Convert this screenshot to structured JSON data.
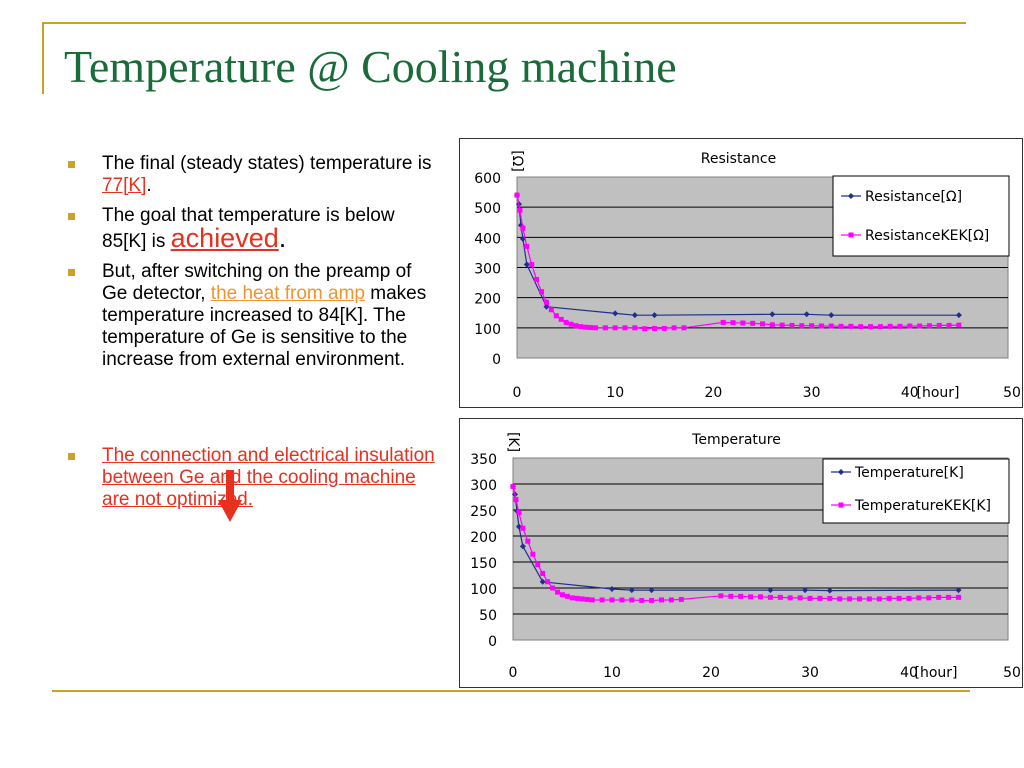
{
  "title": "Temperature @ Cooling machine",
  "bullets": {
    "b1_pre": "The final (steady states) temperature is ",
    "b1_hl": "77[K]",
    "b1_post": ".",
    "b2_pre": "The goal that temperature is below 85[K] is ",
    "b2_hl": "achieved",
    "b2_post": ".",
    "b3_pre": "But, after switching on the preamp of Ge detector, ",
    "b3_hl": "the heat from amp",
    "b3_post": " makes temperature increased to 84[K]. The temperature of Ge is sensitive to the increase from external environment.",
    "b4": "The connection and electrical insulation between Ge and the cooling machine are not optimized."
  },
  "colors": {
    "title": "#1a6b3a",
    "accent": "#c9a227",
    "red": "#e8301e",
    "orange": "#f0952c",
    "series_blue": "#1f2f8f",
    "series_magenta": "#ff00ff",
    "plot_bg": "#c0c0c0"
  },
  "chart_data": [
    {
      "type": "line",
      "title": "Resistance",
      "ylabel": "[Ω]",
      "xlabel": "[hour]",
      "xlim": [
        0,
        50
      ],
      "ylim": [
        0,
        600
      ],
      "xticks": [
        0,
        10,
        20,
        30,
        40,
        50
      ],
      "yticks": [
        0,
        100,
        200,
        300,
        400,
        500,
        600
      ],
      "grid": true,
      "legend": "top-right",
      "series": [
        {
          "name": "Resistance[Ω]",
          "marker": "diamond",
          "points": [
            [
              0,
              540
            ],
            [
              0.2,
              510
            ],
            [
              0.4,
              440
            ],
            [
              0.6,
              395
            ],
            [
              1,
              310
            ],
            [
              3,
              170
            ],
            [
              10,
              148
            ],
            [
              12,
              142
            ],
            [
              14,
              142
            ],
            [
              26,
              145
            ],
            [
              29.5,
              145
            ],
            [
              32,
              142
            ],
            [
              45,
              142
            ]
          ]
        },
        {
          "name": "ResistanceKEK[Ω]",
          "marker": "square",
          "points": [
            [
              0,
              540
            ],
            [
              0.3,
              490
            ],
            [
              0.6,
              430
            ],
            [
              1,
              370
            ],
            [
              1.5,
              310
            ],
            [
              2,
              260
            ],
            [
              2.5,
              220
            ],
            [
              3,
              185
            ],
            [
              3.5,
              160
            ],
            [
              4,
              140
            ],
            [
              4.5,
              128
            ],
            [
              5,
              118
            ],
            [
              5.5,
              112
            ],
            [
              6,
              107
            ],
            [
              6.5,
              104
            ],
            [
              7,
              102
            ],
            [
              7.5,
              101
            ],
            [
              8,
              100
            ],
            [
              9,
              100
            ],
            [
              10,
              100
            ],
            [
              11,
              100
            ],
            [
              12,
              100
            ],
            [
              13,
              97
            ],
            [
              14,
              98
            ],
            [
              15,
              98
            ],
            [
              16,
              100
            ],
            [
              17,
              100
            ],
            [
              21,
              118
            ],
            [
              22,
              117
            ],
            [
              23,
              116
            ],
            [
              24,
              115
            ],
            [
              25,
              113
            ],
            [
              26,
              110
            ],
            [
              27,
              109
            ],
            [
              28,
              108
            ],
            [
              29,
              107
            ],
            [
              30,
              107
            ],
            [
              31,
              106
            ],
            [
              32,
              106
            ],
            [
              33,
              105
            ],
            [
              34,
              105
            ],
            [
              35,
              104
            ],
            [
              36,
              104
            ],
            [
              37,
              104
            ],
            [
              38,
              105
            ],
            [
              39,
              105
            ],
            [
              40,
              106
            ],
            [
              41,
              106
            ],
            [
              42,
              107
            ],
            [
              43,
              108
            ],
            [
              44,
              108
            ],
            [
              45,
              109
            ]
          ]
        }
      ]
    },
    {
      "type": "line",
      "title": "Temperature",
      "ylabel": "[K]",
      "xlabel": "[hour]",
      "xlim": [
        0,
        50
      ],
      "ylim": [
        0,
        350
      ],
      "xticks": [
        0,
        10,
        20,
        30,
        40,
        50
      ],
      "yticks": [
        0,
        50,
        100,
        150,
        200,
        250,
        300,
        350
      ],
      "grid": true,
      "legend": "top-right",
      "series": [
        {
          "name": "Temperature[K]",
          "marker": "diamond",
          "points": [
            [
              0,
              295
            ],
            [
              0.2,
              280
            ],
            [
              0.4,
              248
            ],
            [
              0.6,
              218
            ],
            [
              1,
              180
            ],
            [
              3,
              112
            ],
            [
              10,
              98
            ],
            [
              12,
              96
            ],
            [
              14,
              96
            ],
            [
              26,
              96
            ],
            [
              29.5,
              96
            ],
            [
              32,
              95
            ],
            [
              45,
              96
            ]
          ]
        },
        {
          "name": "TemperatureKEK[K]",
          "marker": "square",
          "points": [
            [
              0,
              295
            ],
            [
              0.3,
              270
            ],
            [
              0.6,
              245
            ],
            [
              1,
              215
            ],
            [
              1.5,
              190
            ],
            [
              2,
              165
            ],
            [
              2.5,
              145
            ],
            [
              3,
              128
            ],
            [
              3.5,
              112
            ],
            [
              4,
              100
            ],
            [
              4.5,
              92
            ],
            [
              5,
              87
            ],
            [
              5.5,
              84
            ],
            [
              6,
              81
            ],
            [
              6.5,
              80
            ],
            [
              7,
              79
            ],
            [
              7.5,
              78
            ],
            [
              8,
              77
            ],
            [
              9,
              77
            ],
            [
              10,
              77
            ],
            [
              11,
              77
            ],
            [
              12,
              77
            ],
            [
              13,
              76
            ],
            [
              14,
              76
            ],
            [
              15,
              77
            ],
            [
              16,
              77
            ],
            [
              17,
              78
            ],
            [
              21,
              85
            ],
            [
              22,
              84
            ],
            [
              23,
              84
            ],
            [
              24,
              83
            ],
            [
              25,
              83
            ],
            [
              26,
              82
            ],
            [
              27,
              82
            ],
            [
              28,
              81
            ],
            [
              29,
              81
            ],
            [
              30,
              80
            ],
            [
              31,
              80
            ],
            [
              32,
              80
            ],
            [
              33,
              79
            ],
            [
              34,
              79
            ],
            [
              35,
              79
            ],
            [
              36,
              79
            ],
            [
              37,
              79
            ],
            [
              38,
              80
            ],
            [
              39,
              80
            ],
            [
              40,
              80
            ],
            [
              41,
              81
            ],
            [
              42,
              81
            ],
            [
              43,
              82
            ],
            [
              44,
              82
            ],
            [
              45,
              82
            ]
          ]
        }
      ]
    }
  ]
}
